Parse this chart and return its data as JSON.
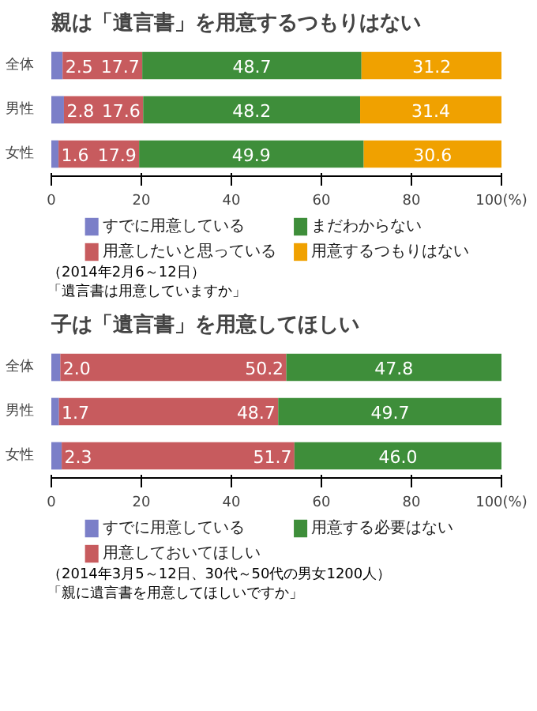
{
  "chart_data": [
    {
      "type": "bar",
      "orientation": "horizontal",
      "stacked": true,
      "title": "親は「遺言書」を用意するつもりはない",
      "categories": [
        "全体",
        "男性",
        "女性"
      ],
      "series": [
        {
          "name": "すでに用意している",
          "color": "#7b7fc8",
          "values": [
            2.5,
            2.8,
            1.6
          ]
        },
        {
          "name": "用意したいと思っている",
          "color": "#c75b5e",
          "values": [
            17.7,
            17.6,
            17.9
          ]
        },
        {
          "name": "まだわからない",
          "color": "#3e8e3a",
          "values": [
            48.7,
            48.2,
            49.9
          ]
        },
        {
          "name": "用意するつもりはない",
          "color": "#f0a100",
          "values": [
            31.2,
            31.4,
            30.6
          ]
        }
      ],
      "xlim": [
        0,
        100
      ],
      "xticks": [
        0,
        20,
        40,
        60,
        80,
        {
          "value": 100,
          "label": "100(%)"
        }
      ],
      "data_labels": true,
      "legend": "bottom",
      "grid": false,
      "annotations": [
        "（2014年2月6～12日）",
        "「遺言書は用意していますか」"
      ]
    },
    {
      "type": "bar",
      "orientation": "horizontal",
      "stacked": true,
      "title": "子は「遺言書」を用意してほしい",
      "categories": [
        "全体",
        "男性",
        "女性"
      ],
      "series": [
        {
          "name": "すでに用意している",
          "color": "#7b7fc8",
          "values": [
            2.0,
            1.7,
            2.3
          ],
          "value_labels": [
            "2.0",
            "1.7",
            "2.3"
          ]
        },
        {
          "name": "用意しておいてほしい",
          "color": "#c75b5e",
          "values": [
            50.2,
            48.7,
            51.7
          ]
        },
        {
          "name": "用意する必要はない",
          "color": "#3e8e3a",
          "values": [
            47.8,
            49.7,
            46.0
          ],
          "value_labels": [
            "47.8",
            "49.7",
            "46.0"
          ]
        }
      ],
      "xlim": [
        0,
        100
      ],
      "xticks": [
        0,
        20,
        40,
        60,
        80,
        {
          "value": 100,
          "label": "100(%)"
        }
      ],
      "data_labels": true,
      "legend": "bottom",
      "grid": false,
      "annotations": [
        "（2014年3月5～12日、30代～50代の男女1200人）",
        "「親に遺言書を用意してほしいですか」"
      ]
    }
  ]
}
